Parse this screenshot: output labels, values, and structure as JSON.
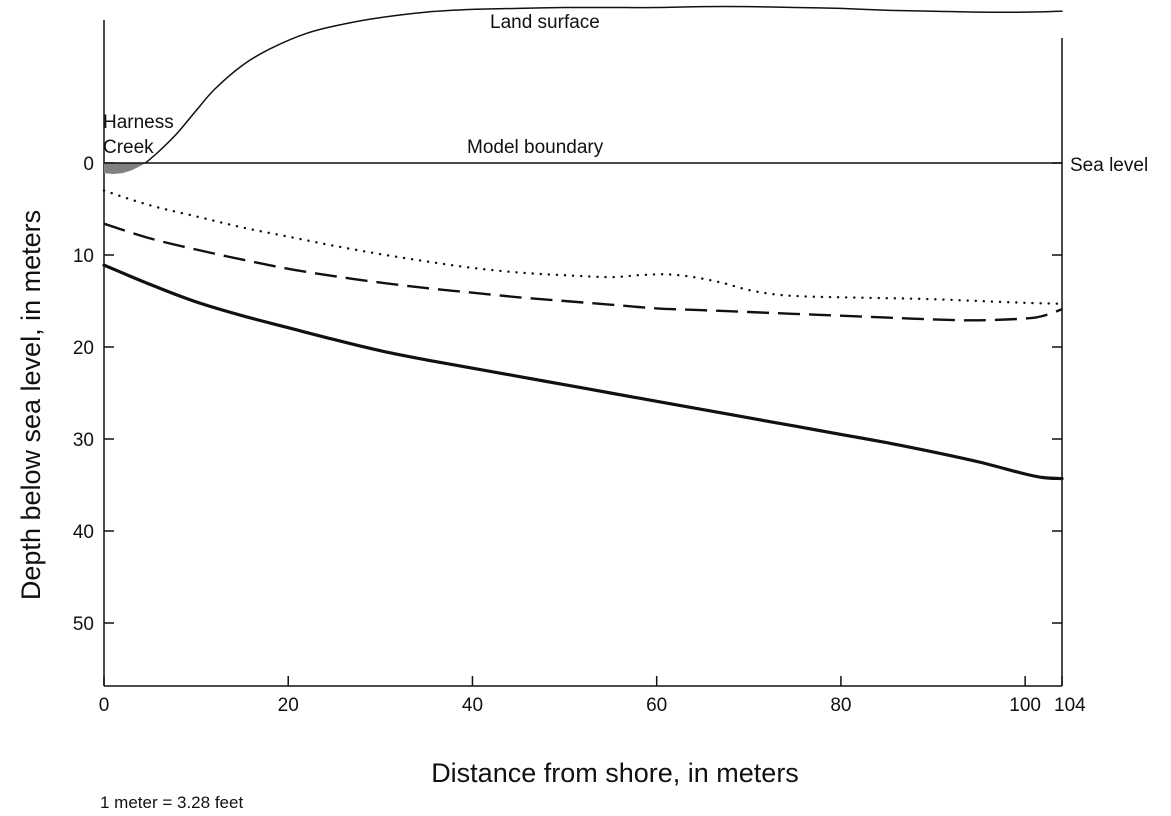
{
  "chart_data": {
    "type": "line",
    "title": "",
    "xlabel": "Distance from shore, in meters",
    "ylabel": "Depth below sea level, in meters",
    "xlim": [
      0,
      104
    ],
    "ylim": [
      -17,
      56
    ],
    "y_inverted": true,
    "x_ticks": [
      0,
      20,
      40,
      60,
      80,
      100,
      104
    ],
    "y_ticks": [
      0,
      10,
      20,
      30,
      40,
      50
    ],
    "grid": false,
    "legend": "none",
    "series": [
      {
        "style": "solid-thin",
        "color": "#111111",
        "x": [
          4.5,
          6,
          8,
          10,
          12,
          15,
          18,
          22,
          26,
          30,
          35,
          40,
          45,
          50,
          55,
          60,
          65,
          70,
          75,
          80,
          85,
          90,
          95,
          100,
          104
        ],
        "y": [
          0,
          -1.3,
          -3.3,
          -5.7,
          -8,
          -10.6,
          -12.4,
          -14.1,
          -15.1,
          -15.8,
          -16.4,
          -16.7,
          -16.8,
          -16.9,
          -16.9,
          -16.9,
          -17,
          -17,
          -16.9,
          -16.8,
          -16.6,
          -16.5,
          -16.4,
          -16.4,
          -16.5
        ]
      },
      {
        "style": "solid-thin",
        "color": "#111111",
        "x": [
          0,
          104
        ],
        "y": [
          0,
          0
        ]
      },
      {
        "style": "dotted",
        "color": "#111111",
        "x": [
          0,
          5,
          10,
          15,
          20,
          25,
          30,
          35,
          40,
          45,
          50,
          55,
          58,
          61,
          64,
          67,
          70,
          73,
          76,
          80,
          85,
          90,
          95,
          100,
          104
        ],
        "y": [
          3,
          4.6,
          5.8,
          7,
          8,
          9,
          9.9,
          10.7,
          11.4,
          11.9,
          12.2,
          12.4,
          12.2,
          12.1,
          12.4,
          13,
          13.8,
          14.3,
          14.5,
          14.6,
          14.7,
          14.8,
          15,
          15.2,
          15.3
        ]
      },
      {
        "style": "dashed",
        "color": "#111111",
        "x": [
          0,
          5,
          10,
          15,
          20,
          25,
          30,
          35,
          40,
          45,
          50,
          55,
          60,
          65,
          70,
          75,
          80,
          85,
          90,
          95,
          100,
          102,
          104
        ],
        "y": [
          6.6,
          8.2,
          9.4,
          10.5,
          11.5,
          12.3,
          13,
          13.6,
          14.1,
          14.6,
          15,
          15.4,
          15.8,
          16,
          16.2,
          16.4,
          16.6,
          16.8,
          17,
          17.1,
          16.9,
          16.6,
          15.9
        ]
      },
      {
        "style": "solid-thick",
        "color": "#111111",
        "x": [
          0,
          5,
          10,
          15,
          20,
          25,
          30,
          35,
          40,
          45,
          50,
          55,
          60,
          65,
          70,
          75,
          80,
          85,
          90,
          95,
          100,
          102,
          104
        ],
        "y": [
          11.1,
          13.2,
          15.1,
          16.6,
          17.9,
          19.2,
          20.4,
          21.4,
          22.3,
          23.2,
          24.1,
          25,
          25.9,
          26.8,
          27.7,
          28.6,
          29.5,
          30.4,
          31.4,
          32.5,
          33.8,
          34.2,
          34.3
        ]
      }
    ],
    "creek_fill": {
      "color": "#808080",
      "x": [
        0,
        1,
        2,
        3,
        4,
        4.5
      ],
      "y": [
        1.1,
        1.2,
        1.1,
        0.8,
        0.3,
        0
      ]
    },
    "annotations": {
      "land_surface": "Land surface",
      "harness_line1": "Harness",
      "harness_line2": "Creek",
      "model_boundary": "Model boundary",
      "sea_level": "Sea level",
      "conversion_note": "1 meter = 3.28 feet"
    }
  }
}
